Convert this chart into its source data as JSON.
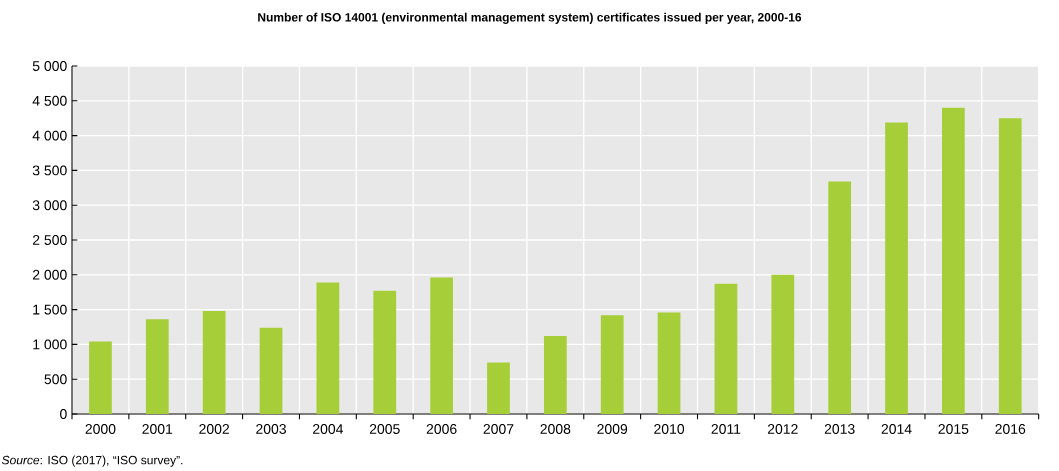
{
  "chart_data": {
    "type": "bar",
    "title": "Number of ISO 14001 (environmental management system) certificates issued per year, 2000-16",
    "categories": [
      "2000",
      "2001",
      "2002",
      "2003",
      "2004",
      "2005",
      "2006",
      "2007",
      "2008",
      "2009",
      "2010",
      "2011",
      "2012",
      "2013",
      "2014",
      "2015",
      "2016"
    ],
    "values": [
      1040,
      1360,
      1480,
      1240,
      1890,
      1770,
      1960,
      740,
      1120,
      1420,
      1460,
      1870,
      2000,
      3340,
      4190,
      4400,
      4250
    ],
    "color": "#a6ce39",
    "ylim": [
      0,
      5000
    ],
    "yticks": [
      0,
      500,
      {
        "value": 1000,
        "label": "1 000"
      },
      {
        "value": 1500,
        "label": "1 500"
      },
      {
        "value": 2000,
        "label": "2 000"
      },
      {
        "value": 2500,
        "label": "2 500"
      },
      {
        "value": 3000,
        "label": "3 000"
      },
      {
        "value": 3500,
        "label": "3 500"
      },
      {
        "value": 4000,
        "label": "4 000"
      },
      {
        "value": 4500,
        "label": "4 500"
      },
      {
        "value": 5000,
        "label": "5 000"
      }
    ],
    "grid": true,
    "annotations": [
      "*Source*: ISO (2017), “ISO survey”."
    ]
  }
}
